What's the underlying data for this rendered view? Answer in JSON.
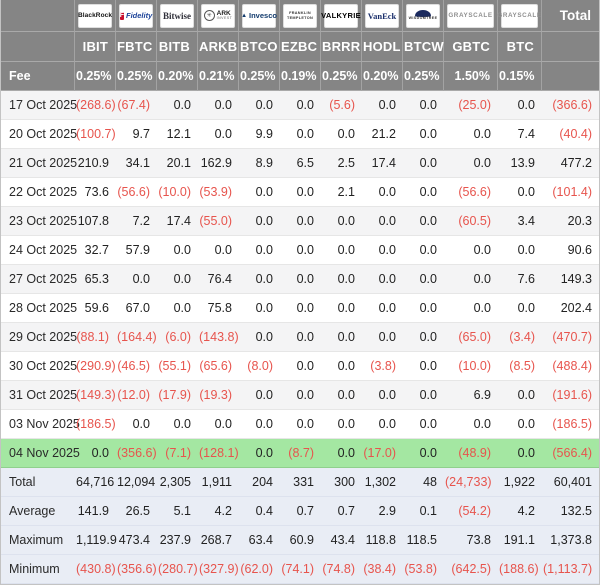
{
  "table": {
    "total_label": "Total",
    "fee_label": "Fee",
    "providers": [
      {
        "name": "BlackRock",
        "slug": "blackrock",
        "ticker": "IBIT",
        "fee": "0.25%"
      },
      {
        "name": "Fidelity",
        "slug": "fidelity",
        "ticker": "FBTC",
        "fee": "0.25%"
      },
      {
        "name": "Bitwise",
        "slug": "bitwise",
        "ticker": "BITB",
        "fee": "0.20%"
      },
      {
        "name": "ARK Invest",
        "slug": "ark",
        "ticker": "ARKB",
        "fee": "0.21%"
      },
      {
        "name": "Invesco",
        "slug": "invesco",
        "ticker": "BTCO",
        "fee": "0.25%"
      },
      {
        "name": "Franklin Templeton",
        "slug": "franklin",
        "ticker": "EZBC",
        "fee": "0.19%"
      },
      {
        "name": "Valkyrie",
        "slug": "valkyrie",
        "ticker": "BRRR",
        "fee": "0.25%"
      },
      {
        "name": "VanEck",
        "slug": "vaneck",
        "ticker": "HODL",
        "fee": "0.20%"
      },
      {
        "name": "WisdomTree",
        "slug": "wisdomtree",
        "ticker": "BTCW",
        "fee": "0.25%"
      },
      {
        "name": "Grayscale",
        "slug": "grayscale",
        "ticker": "GBTC",
        "fee": "1.50%"
      },
      {
        "name": "Grayscale",
        "slug": "grayscale",
        "ticker": "BTC",
        "fee": "0.15%"
      }
    ],
    "rows": [
      {
        "label": "17 Oct 2025",
        "highlight": false,
        "values": [
          "(268.6)",
          "(67.4)",
          "0.0",
          "0.0",
          "0.0",
          "0.0",
          "(5.6)",
          "0.0",
          "0.0",
          "(25.0)",
          "0.0",
          "(366.6)"
        ]
      },
      {
        "label": "20 Oct 2025",
        "highlight": false,
        "values": [
          "(100.7)",
          "9.7",
          "12.1",
          "0.0",
          "9.9",
          "0.0",
          "0.0",
          "21.2",
          "0.0",
          "0.0",
          "7.4",
          "(40.4)"
        ]
      },
      {
        "label": "21 Oct 2025",
        "highlight": false,
        "values": [
          "210.9",
          "34.1",
          "20.1",
          "162.9",
          "8.9",
          "6.5",
          "2.5",
          "17.4",
          "0.0",
          "0.0",
          "13.9",
          "477.2"
        ]
      },
      {
        "label": "22 Oct 2025",
        "highlight": false,
        "values": [
          "73.6",
          "(56.6)",
          "(10.0)",
          "(53.9)",
          "0.0",
          "0.0",
          "2.1",
          "0.0",
          "0.0",
          "(56.6)",
          "0.0",
          "(101.4)"
        ]
      },
      {
        "label": "23 Oct 2025",
        "highlight": false,
        "values": [
          "107.8",
          "7.2",
          "17.4",
          "(55.0)",
          "0.0",
          "0.0",
          "0.0",
          "0.0",
          "0.0",
          "(60.5)",
          "3.4",
          "20.3"
        ]
      },
      {
        "label": "24 Oct 2025",
        "highlight": false,
        "values": [
          "32.7",
          "57.9",
          "0.0",
          "0.0",
          "0.0",
          "0.0",
          "0.0",
          "0.0",
          "0.0",
          "0.0",
          "0.0",
          "90.6"
        ]
      },
      {
        "label": "27 Oct 2025",
        "highlight": false,
        "values": [
          "65.3",
          "0.0",
          "0.0",
          "76.4",
          "0.0",
          "0.0",
          "0.0",
          "0.0",
          "0.0",
          "0.0",
          "7.6",
          "149.3"
        ]
      },
      {
        "label": "28 Oct 2025",
        "highlight": false,
        "values": [
          "59.6",
          "67.0",
          "0.0",
          "75.8",
          "0.0",
          "0.0",
          "0.0",
          "0.0",
          "0.0",
          "0.0",
          "0.0",
          "202.4"
        ]
      },
      {
        "label": "29 Oct 2025",
        "highlight": false,
        "values": [
          "(88.1)",
          "(164.4)",
          "(6.0)",
          "(143.8)",
          "0.0",
          "0.0",
          "0.0",
          "0.0",
          "0.0",
          "(65.0)",
          "(3.4)",
          "(470.7)"
        ]
      },
      {
        "label": "30 Oct 2025",
        "highlight": false,
        "values": [
          "(290.9)",
          "(46.5)",
          "(55.1)",
          "(65.6)",
          "(8.0)",
          "0.0",
          "0.0",
          "(3.8)",
          "0.0",
          "(10.0)",
          "(8.5)",
          "(488.4)"
        ]
      },
      {
        "label": "31 Oct 2025",
        "highlight": false,
        "values": [
          "(149.3)",
          "(12.0)",
          "(17.9)",
          "(19.3)",
          "0.0",
          "0.0",
          "0.0",
          "0.0",
          "0.0",
          "6.9",
          "0.0",
          "(191.6)"
        ]
      },
      {
        "label": "03 Nov 2025",
        "highlight": false,
        "values": [
          "(186.5)",
          "0.0",
          "0.0",
          "0.0",
          "0.0",
          "0.0",
          "0.0",
          "0.0",
          "0.0",
          "0.0",
          "0.0",
          "(186.5)"
        ]
      },
      {
        "label": "04 Nov 2025",
        "highlight": true,
        "values": [
          "0.0",
          "(356.6)",
          "(7.1)",
          "(128.1)",
          "0.0",
          "(8.7)",
          "0.0",
          "(17.0)",
          "0.0",
          "(48.9)",
          "0.0",
          "(566.4)"
        ]
      }
    ],
    "summary_rows": [
      {
        "label": "Total",
        "values": [
          "64,716",
          "12,094",
          "2,305",
          "1,911",
          "204",
          "331",
          "300",
          "1,302",
          "48",
          "(24,733)",
          "1,922",
          "60,401"
        ]
      },
      {
        "label": "Average",
        "values": [
          "141.9",
          "26.5",
          "5.1",
          "4.2",
          "0.4",
          "0.7",
          "0.7",
          "2.9",
          "0.1",
          "(54.2)",
          "4.2",
          "132.5"
        ]
      },
      {
        "label": "Maximum",
        "values": [
          "1,119.9",
          "473.4",
          "237.9",
          "268.7",
          "63.4",
          "60.9",
          "43.4",
          "118.8",
          "118.5",
          "73.8",
          "191.1",
          "1,373.8"
        ]
      },
      {
        "label": "Minimum",
        "values": [
          "(430.8)",
          "(356.6)",
          "(280.7)",
          "(327.9)",
          "(62.0)",
          "(74.1)",
          "(74.8)",
          "(38.4)",
          "(53.8)",
          "(642.5)",
          "(188.6)",
          "(1,113.7)"
        ]
      }
    ],
    "colors": {
      "header_bg": "#858585",
      "highlight_row_bg": "#a4e7a2",
      "summary_bg": "#e9edf5",
      "stripe_bg": "#f4f4f5",
      "negative_text": "#e7544d"
    }
  }
}
